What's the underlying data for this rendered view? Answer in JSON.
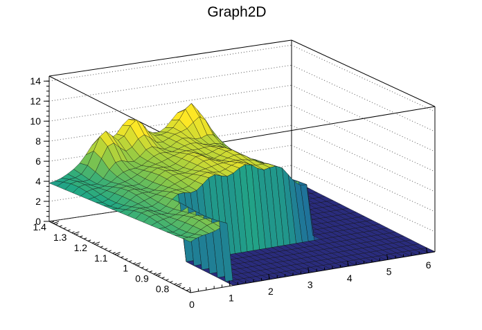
{
  "chart_data": {
    "type": "surface3d",
    "title": "Graph2D",
    "xlabel": "",
    "ylabel": "",
    "zlabel": "",
    "x_ticks": [
      "0",
      "1",
      "2",
      "3",
      "4",
      "5",
      "6"
    ],
    "y_ticks": [
      "0.8",
      "0.9",
      "1",
      "1.1",
      "1.2",
      "1.3",
      "1.4"
    ],
    "z_ticks": [
      "0",
      "2",
      "4",
      "6",
      "8",
      "10",
      "12",
      "14"
    ],
    "xlim": [
      0,
      6.2
    ],
    "ylim": [
      0.73,
      1.42
    ],
    "zlim": [
      0,
      14.5
    ],
    "grid": true,
    "palette": "viridis-like",
    "ridge_profile": [
      {
        "x": 0.0,
        "z": 4.4
      },
      {
        "x": 0.5,
        "z": 5.0
      },
      {
        "x": 1.0,
        "z": 5.7
      },
      {
        "x": 1.5,
        "z": 6.5
      },
      {
        "x": 2.0,
        "z": 7.2
      },
      {
        "x": 2.5,
        "z": 7.6
      },
      {
        "x": 3.0,
        "z": 7.7
      },
      {
        "x": 3.4,
        "z": 7.4
      },
      {
        "x": 3.7,
        "z": 6.8
      },
      {
        "x": 4.0,
        "z": 5.9
      },
      {
        "x": 4.3,
        "z": 4.9
      }
    ],
    "peaks": [
      {
        "x": 3.4,
        "y": 1.38,
        "z": 10.5
      },
      {
        "x": 2.0,
        "y": 1.4,
        "z": 9.8
      },
      {
        "x": 1.2,
        "y": 1.38,
        "z": 9.0
      }
    ],
    "plateau_z": 0,
    "colors": {
      "low": "#2a2c7d",
      "mid": "#22a884",
      "high": "#fde725"
    }
  }
}
